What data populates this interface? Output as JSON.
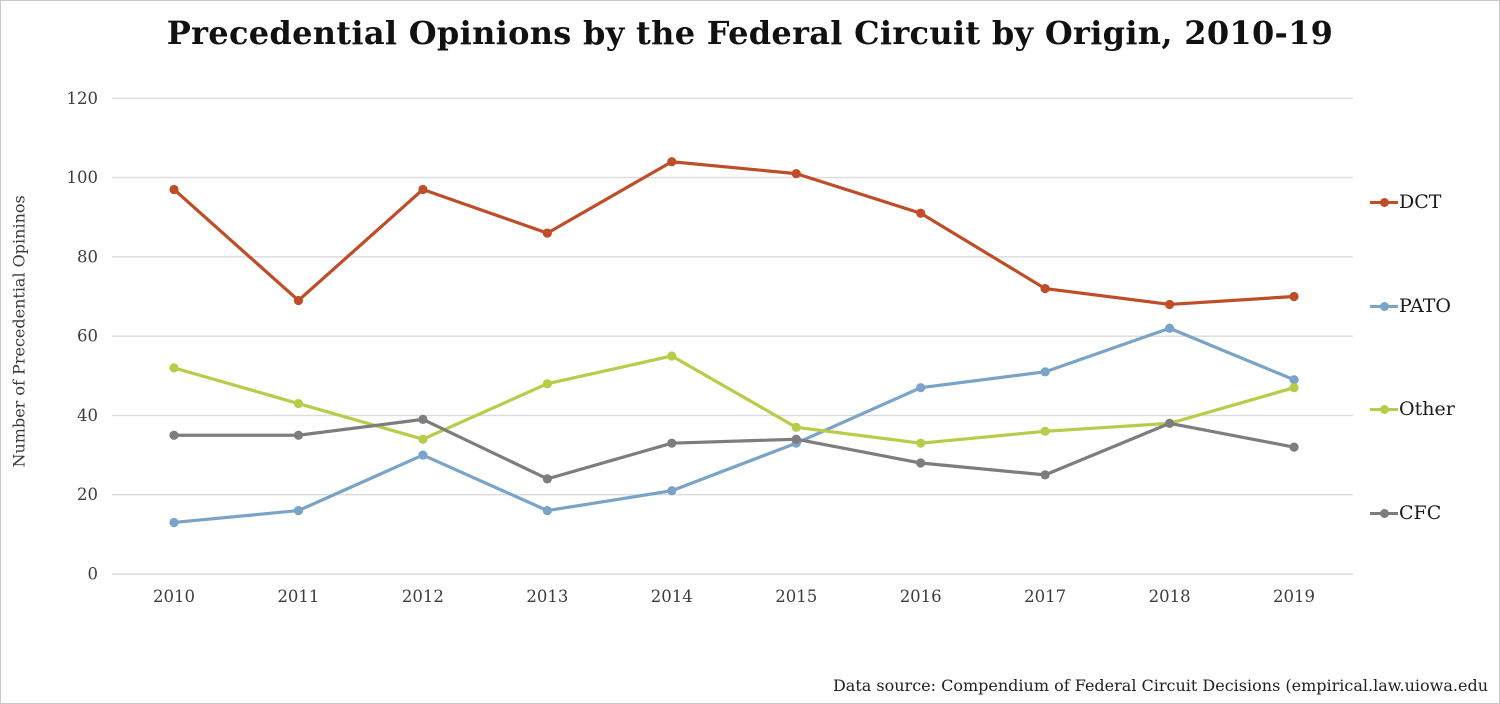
{
  "title": "Precedential Opinions by the Federal Circuit by Origin, 2010-19",
  "footer": {
    "source_text": "Data source: Compendium of Federal Circuit Decisions (empirical.law.uiowa.edu"
  },
  "colors": {
    "gridline": "#dcdcdc",
    "tick_label": "#3d3d3d",
    "background": "#ffffff"
  },
  "chart_data": {
    "type": "line",
    "title": "Precedential Opinions by the Federal Circuit by Origin, 2010-19",
    "xlabel": "",
    "ylabel": "Number of Precedential Opininos",
    "categories": [
      "2010",
      "2011",
      "2012",
      "2013",
      "2014",
      "2015",
      "2016",
      "2017",
      "2018",
      "2019"
    ],
    "series": [
      {
        "name": "DCT",
        "color": "#bf4d27",
        "values": [
          97,
          69,
          97,
          86,
          104,
          101,
          91,
          72,
          68,
          70
        ]
      },
      {
        "name": "PATO",
        "color": "#79a3c8",
        "values": [
          13,
          16,
          30,
          16,
          21,
          33,
          47,
          51,
          62,
          49
        ]
      },
      {
        "name": "Other",
        "color": "#b7cc49",
        "values": [
          52,
          43,
          34,
          48,
          55,
          37,
          33,
          36,
          38,
          47
        ]
      },
      {
        "name": "CFC",
        "color": "#7d7d7d",
        "values": [
          35,
          35,
          39,
          24,
          33,
          34,
          28,
          25,
          38,
          32
        ]
      }
    ],
    "ylim": [
      0,
      120
    ],
    "yticks": [
      0,
      20,
      40,
      60,
      80,
      100,
      120
    ],
    "grid": "horizontal-only",
    "legend_position": "right",
    "marker": "circle"
  }
}
